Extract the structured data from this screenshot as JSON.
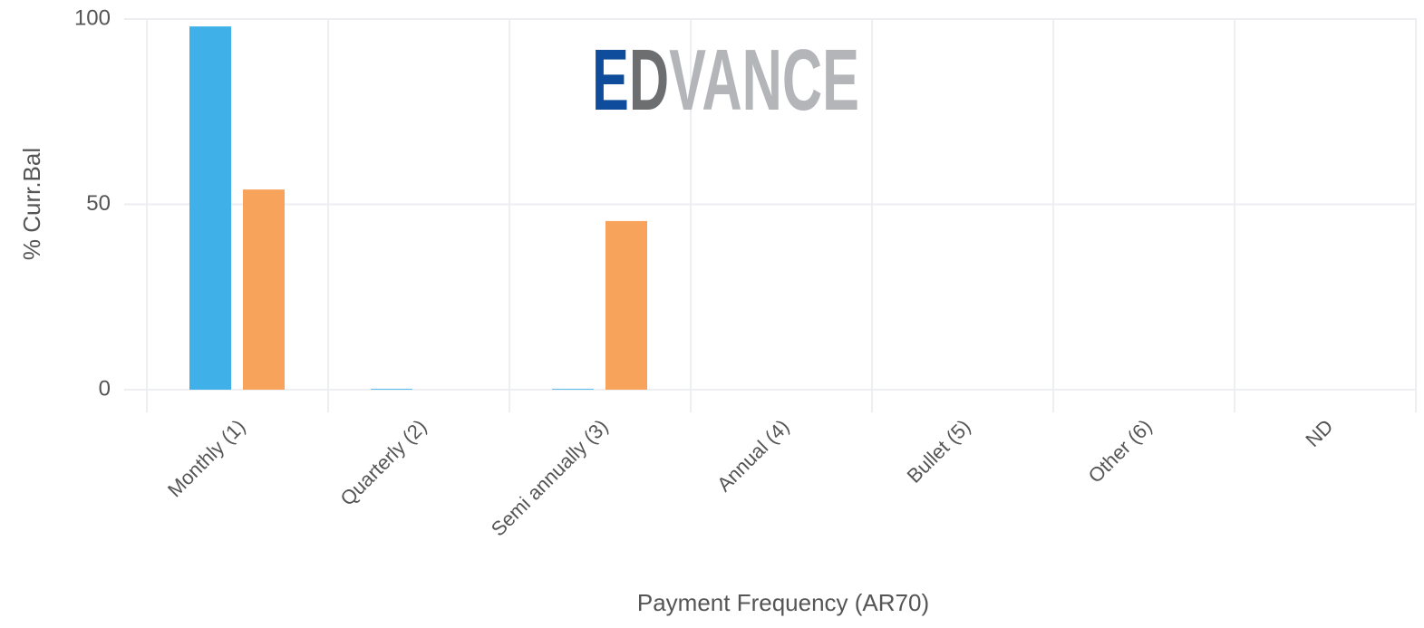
{
  "chart_data": {
    "type": "bar",
    "watermark": [
      "E",
      "D",
      "VANCE"
    ],
    "watermark_colors": [
      "#0f4c9c",
      "#6d6e70",
      "#b3b5b8"
    ],
    "xlabel": "Payment Frequency (AR70)",
    "ylabel": "% Curr.Bal",
    "categories": [
      "Monthly (1)",
      "Quarterly (2)",
      "Semi annually (3)",
      "Annual (4)",
      "Bullet (5)",
      "Other (6)",
      "ND"
    ],
    "series": [
      {
        "color": "#3fb1e8",
        "values": [
          98,
          0.2,
          0.2,
          0,
          0,
          0,
          0
        ]
      },
      {
        "color": "#f7a35c",
        "values": [
          54,
          0,
          45.5,
          0,
          0,
          0,
          0
        ]
      }
    ],
    "ylim": [
      0,
      100
    ],
    "yticks": [
      0,
      50,
      100
    ],
    "grid": true
  }
}
